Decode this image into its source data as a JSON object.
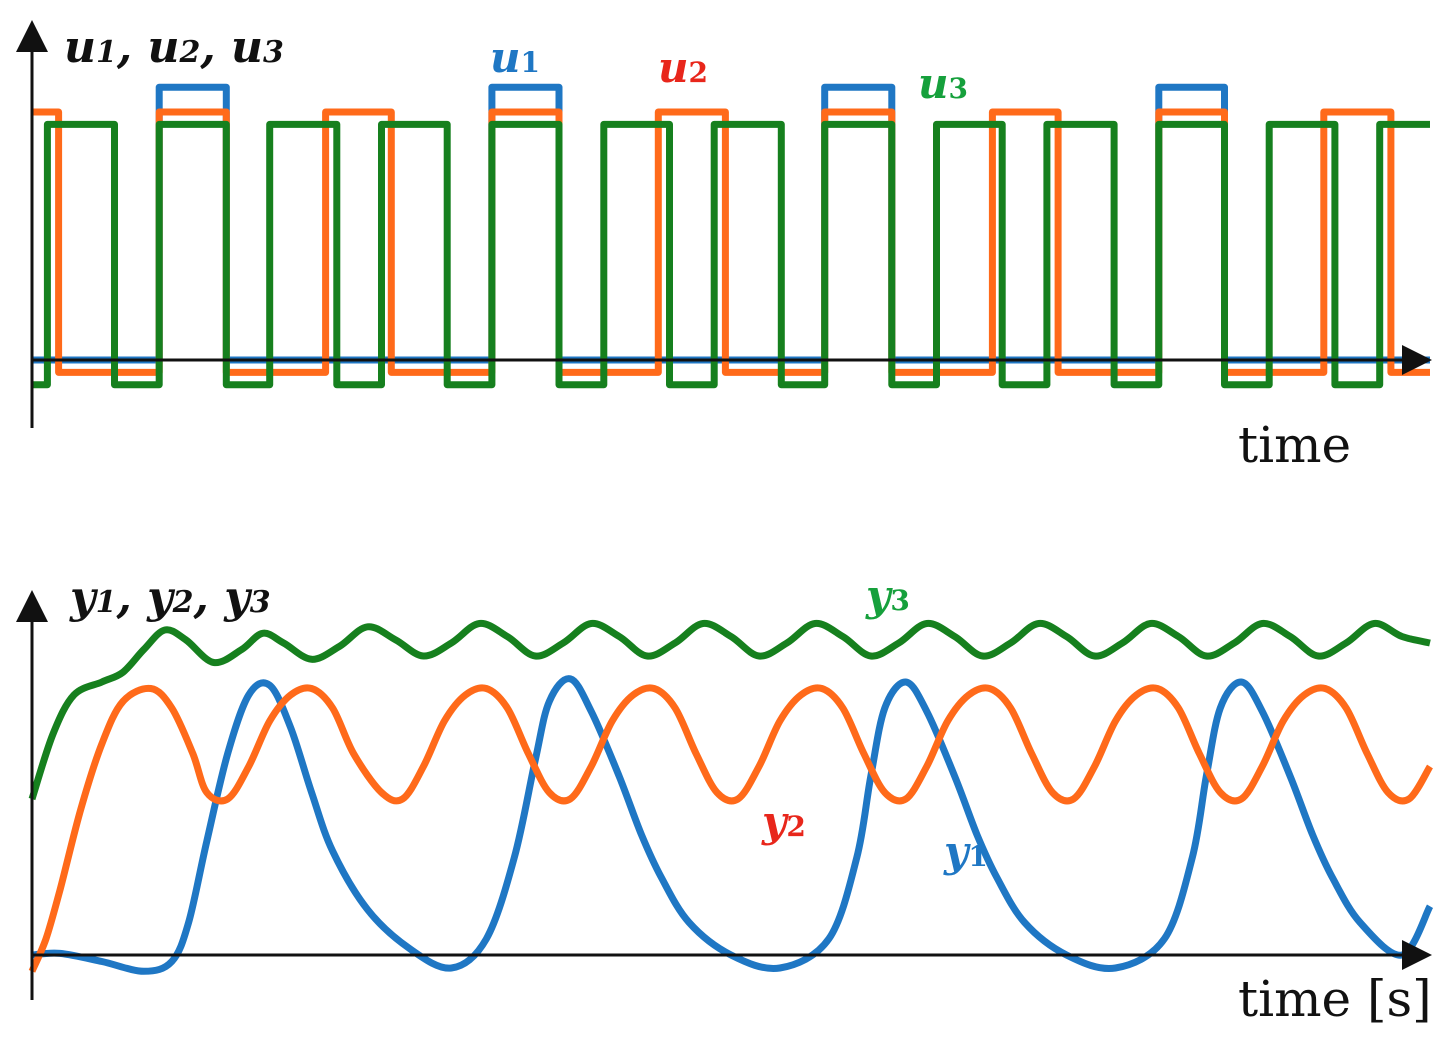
{
  "colors": {
    "u1": "#1f77c4",
    "u2": "#ff6a1a",
    "u3": "#16801e",
    "axis": "#111111",
    "u2_label": "#e8261b",
    "y2_label": "#e8261b",
    "u3_label": "#16a03c",
    "y3_label": "#16a03c"
  },
  "chart_data": [
    {
      "type": "line",
      "title": "",
      "ylabel": {
        "parts": [
          {
            "base": "u",
            "sub": "1",
            "sep": ", "
          },
          {
            "base": "u",
            "sub": "2",
            "sep": ", "
          },
          {
            "base": "u",
            "sub": "3",
            "sep": ""
          }
        ]
      },
      "xlabel": "time",
      "xlim": [
        0,
        1
      ],
      "ylim": [
        -0.15,
        1.15
      ],
      "step": true,
      "series": [
        {
          "key": "u1",
          "base": "u",
          "sub": "1",
          "x": [
            0,
            0.091,
            0.091,
            0.139,
            0.139,
            0.329,
            0.329,
            0.377,
            0.377,
            0.567,
            0.567,
            0.615,
            0.615,
            0.806,
            0.806,
            0.853,
            0.853,
            1.0
          ],
          "y": [
            0,
            0,
            1.1,
            1.1,
            0,
            0,
            1.1,
            1.1,
            0,
            0,
            1.1,
            1.1,
            0,
            0,
            1.1,
            1.1,
            0,
            0
          ]
        },
        {
          "key": "u2",
          "base": "u",
          "sub": "2",
          "x": [
            0,
            0.019,
            0.019,
            0.091,
            0.091,
            0.139,
            0.139,
            0.21,
            0.21,
            0.257,
            0.257,
            0.329,
            0.329,
            0.377,
            0.377,
            0.448,
            0.448,
            0.496,
            0.496,
            0.567,
            0.567,
            0.615,
            0.615,
            0.687,
            0.687,
            0.734,
            0.734,
            0.806,
            0.806,
            0.853,
            0.853,
            0.924,
            0.924,
            0.972,
            0.972,
            1.0
          ],
          "y": [
            1.0,
            1.0,
            -0.05,
            -0.05,
            1.0,
            1.0,
            -0.05,
            -0.05,
            1.0,
            1.0,
            -0.05,
            -0.05,
            1.0,
            1.0,
            -0.05,
            -0.05,
            1.0,
            1.0,
            -0.05,
            -0.05,
            1.0,
            1.0,
            -0.05,
            -0.05,
            1.0,
            1.0,
            -0.05,
            -0.05,
            1.0,
            1.0,
            -0.05,
            -0.05,
            1.0,
            1.0,
            -0.05,
            -0.05
          ]
        },
        {
          "key": "u3",
          "base": "u",
          "sub": "3",
          "x": [
            0,
            0.011,
            0.011,
            0.059,
            0.059,
            0.091,
            0.091,
            0.139,
            0.139,
            0.17,
            0.17,
            0.218,
            0.218,
            0.25,
            0.25,
            0.297,
            0.297,
            0.329,
            0.329,
            0.377,
            0.377,
            0.409,
            0.409,
            0.456,
            0.456,
            0.488,
            0.488,
            0.536,
            0.536,
            0.567,
            0.567,
            0.615,
            0.615,
            0.647,
            0.647,
            0.694,
            0.694,
            0.726,
            0.726,
            0.774,
            0.774,
            0.806,
            0.806,
            0.853,
            0.853,
            0.885,
            0.885,
            0.932,
            0.932,
            0.964,
            0.964,
            1.0
          ],
          "y": [
            -0.1,
            -0.1,
            0.95,
            0.95,
            -0.1,
            -0.1,
            0.95,
            0.95,
            -0.1,
            -0.1,
            0.95,
            0.95,
            -0.1,
            -0.1,
            0.95,
            0.95,
            -0.1,
            -0.1,
            0.95,
            0.95,
            -0.1,
            -0.1,
            0.95,
            0.95,
            -0.1,
            -0.1,
            0.95,
            0.95,
            -0.1,
            -0.1,
            0.95,
            0.95,
            -0.1,
            -0.1,
            0.95,
            0.95,
            -0.1,
            -0.1,
            0.95,
            0.95,
            -0.1,
            -0.1,
            0.95,
            0.95,
            -0.1,
            -0.1,
            0.95,
            0.95,
            -0.1,
            -0.1,
            0.95,
            0.95
          ]
        }
      ]
    },
    {
      "type": "line",
      "title": "",
      "ylabel": {
        "parts": [
          {
            "base": "y",
            "sub": "1",
            "sep": ", "
          },
          {
            "base": "y",
            "sub": "2",
            "sep": ", "
          },
          {
            "base": "y",
            "sub": "3",
            "sep": ""
          }
        ]
      },
      "xlabel": "time [s]",
      "xlim": [
        0,
        1
      ],
      "ylim": [
        -0.15,
        1.15
      ],
      "step": false,
      "series": [
        {
          "key": "y1",
          "base": "y",
          "sub": "1",
          "x": [
            0,
            0.02,
            0.05,
            0.08,
            0.1,
            0.112,
            0.125,
            0.14,
            0.155,
            0.17,
            0.185,
            0.2,
            0.215,
            0.24,
            0.27,
            0.3,
            0.325,
            0.345,
            0.36,
            0.37,
            0.385,
            0.4,
            0.42,
            0.436,
            0.45,
            0.47,
            0.5,
            0.535,
            0.57,
            0.59,
            0.6,
            0.61,
            0.625,
            0.64,
            0.66,
            0.676,
            0.69,
            0.71,
            0.74,
            0.775,
            0.81,
            0.83,
            0.84,
            0.85,
            0.865,
            0.88,
            0.9,
            0.916,
            0.93,
            0.95,
            0.98,
            1.0
          ],
          "y": [
            0,
            0.005,
            -0.02,
            -0.05,
            -0.02,
            0.1,
            0.35,
            0.62,
            0.8,
            0.83,
            0.7,
            0.5,
            0.32,
            0.14,
            0.02,
            -0.04,
            0.05,
            0.3,
            0.6,
            0.78,
            0.85,
            0.75,
            0.55,
            0.37,
            0.24,
            0.1,
            0.0,
            -0.04,
            0.05,
            0.3,
            0.55,
            0.76,
            0.84,
            0.75,
            0.55,
            0.37,
            0.24,
            0.1,
            0.0,
            -0.04,
            0.05,
            0.3,
            0.55,
            0.76,
            0.84,
            0.75,
            0.55,
            0.37,
            0.24,
            0.1,
            0.0,
            0.15
          ]
        },
        {
          "key": "y2",
          "base": "y",
          "sub": "2",
          "x": [
            0,
            0.01,
            0.02,
            0.035,
            0.05,
            0.065,
            0.085,
            0.1,
            0.115,
            0.125,
            0.14,
            0.155,
            0.17,
            0.185,
            0.2,
            0.215,
            0.23,
            0.25,
            0.265,
            0.28,
            0.295,
            0.31,
            0.325,
            0.34,
            0.355,
            0.37,
            0.385,
            0.4,
            0.415,
            0.43,
            0.445,
            0.46,
            0.475,
            0.49,
            0.505,
            0.52,
            0.535,
            0.55,
            0.565,
            0.58,
            0.595,
            0.61,
            0.625,
            0.64,
            0.655,
            0.67,
            0.685,
            0.7,
            0.715,
            0.73,
            0.745,
            0.76,
            0.775,
            0.79,
            0.805,
            0.82,
            0.835,
            0.85,
            0.865,
            0.88,
            0.895,
            0.91,
            0.925,
            0.94,
            0.955,
            0.97,
            0.985,
            1.0
          ],
          "y": [
            -0.05,
            0.05,
            0.2,
            0.45,
            0.65,
            0.78,
            0.82,
            0.76,
            0.62,
            0.5,
            0.48,
            0.58,
            0.72,
            0.8,
            0.82,
            0.76,
            0.62,
            0.5,
            0.48,
            0.58,
            0.72,
            0.8,
            0.82,
            0.76,
            0.62,
            0.5,
            0.48,
            0.58,
            0.72,
            0.8,
            0.82,
            0.76,
            0.62,
            0.5,
            0.48,
            0.58,
            0.72,
            0.8,
            0.82,
            0.76,
            0.62,
            0.5,
            0.48,
            0.58,
            0.72,
            0.8,
            0.82,
            0.76,
            0.62,
            0.5,
            0.48,
            0.58,
            0.72,
            0.8,
            0.82,
            0.76,
            0.62,
            0.5,
            0.48,
            0.58,
            0.72,
            0.8,
            0.82,
            0.76,
            0.62,
            0.5,
            0.48,
            0.58
          ]
        },
        {
          "key": "y3",
          "base": "y",
          "sub": "3",
          "x": [
            0,
            0.015,
            0.03,
            0.05,
            0.065,
            0.08,
            0.095,
            0.11,
            0.13,
            0.15,
            0.165,
            0.18,
            0.2,
            0.22,
            0.24,
            0.26,
            0.28,
            0.3,
            0.32,
            0.34,
            0.36,
            0.38,
            0.4,
            0.42,
            0.44,
            0.46,
            0.48,
            0.5,
            0.52,
            0.54,
            0.56,
            0.58,
            0.6,
            0.62,
            0.64,
            0.66,
            0.68,
            0.7,
            0.72,
            0.74,
            0.76,
            0.78,
            0.8,
            0.82,
            0.84,
            0.86,
            0.88,
            0.9,
            0.92,
            0.94,
            0.96,
            0.98,
            1.0
          ],
          "y": [
            0.48,
            0.68,
            0.8,
            0.84,
            0.87,
            0.94,
            1.0,
            0.97,
            0.9,
            0.94,
            0.99,
            0.96,
            0.91,
            0.95,
            1.01,
            0.97,
            0.92,
            0.96,
            1.02,
            0.98,
            0.92,
            0.96,
            1.02,
            0.98,
            0.92,
            0.96,
            1.02,
            0.98,
            0.92,
            0.96,
            1.02,
            0.98,
            0.92,
            0.96,
            1.02,
            0.98,
            0.92,
            0.96,
            1.02,
            0.98,
            0.92,
            0.96,
            1.02,
            0.98,
            0.92,
            0.96,
            1.02,
            0.98,
            0.92,
            0.96,
            1.02,
            0.98,
            0.96
          ]
        }
      ]
    }
  ]
}
